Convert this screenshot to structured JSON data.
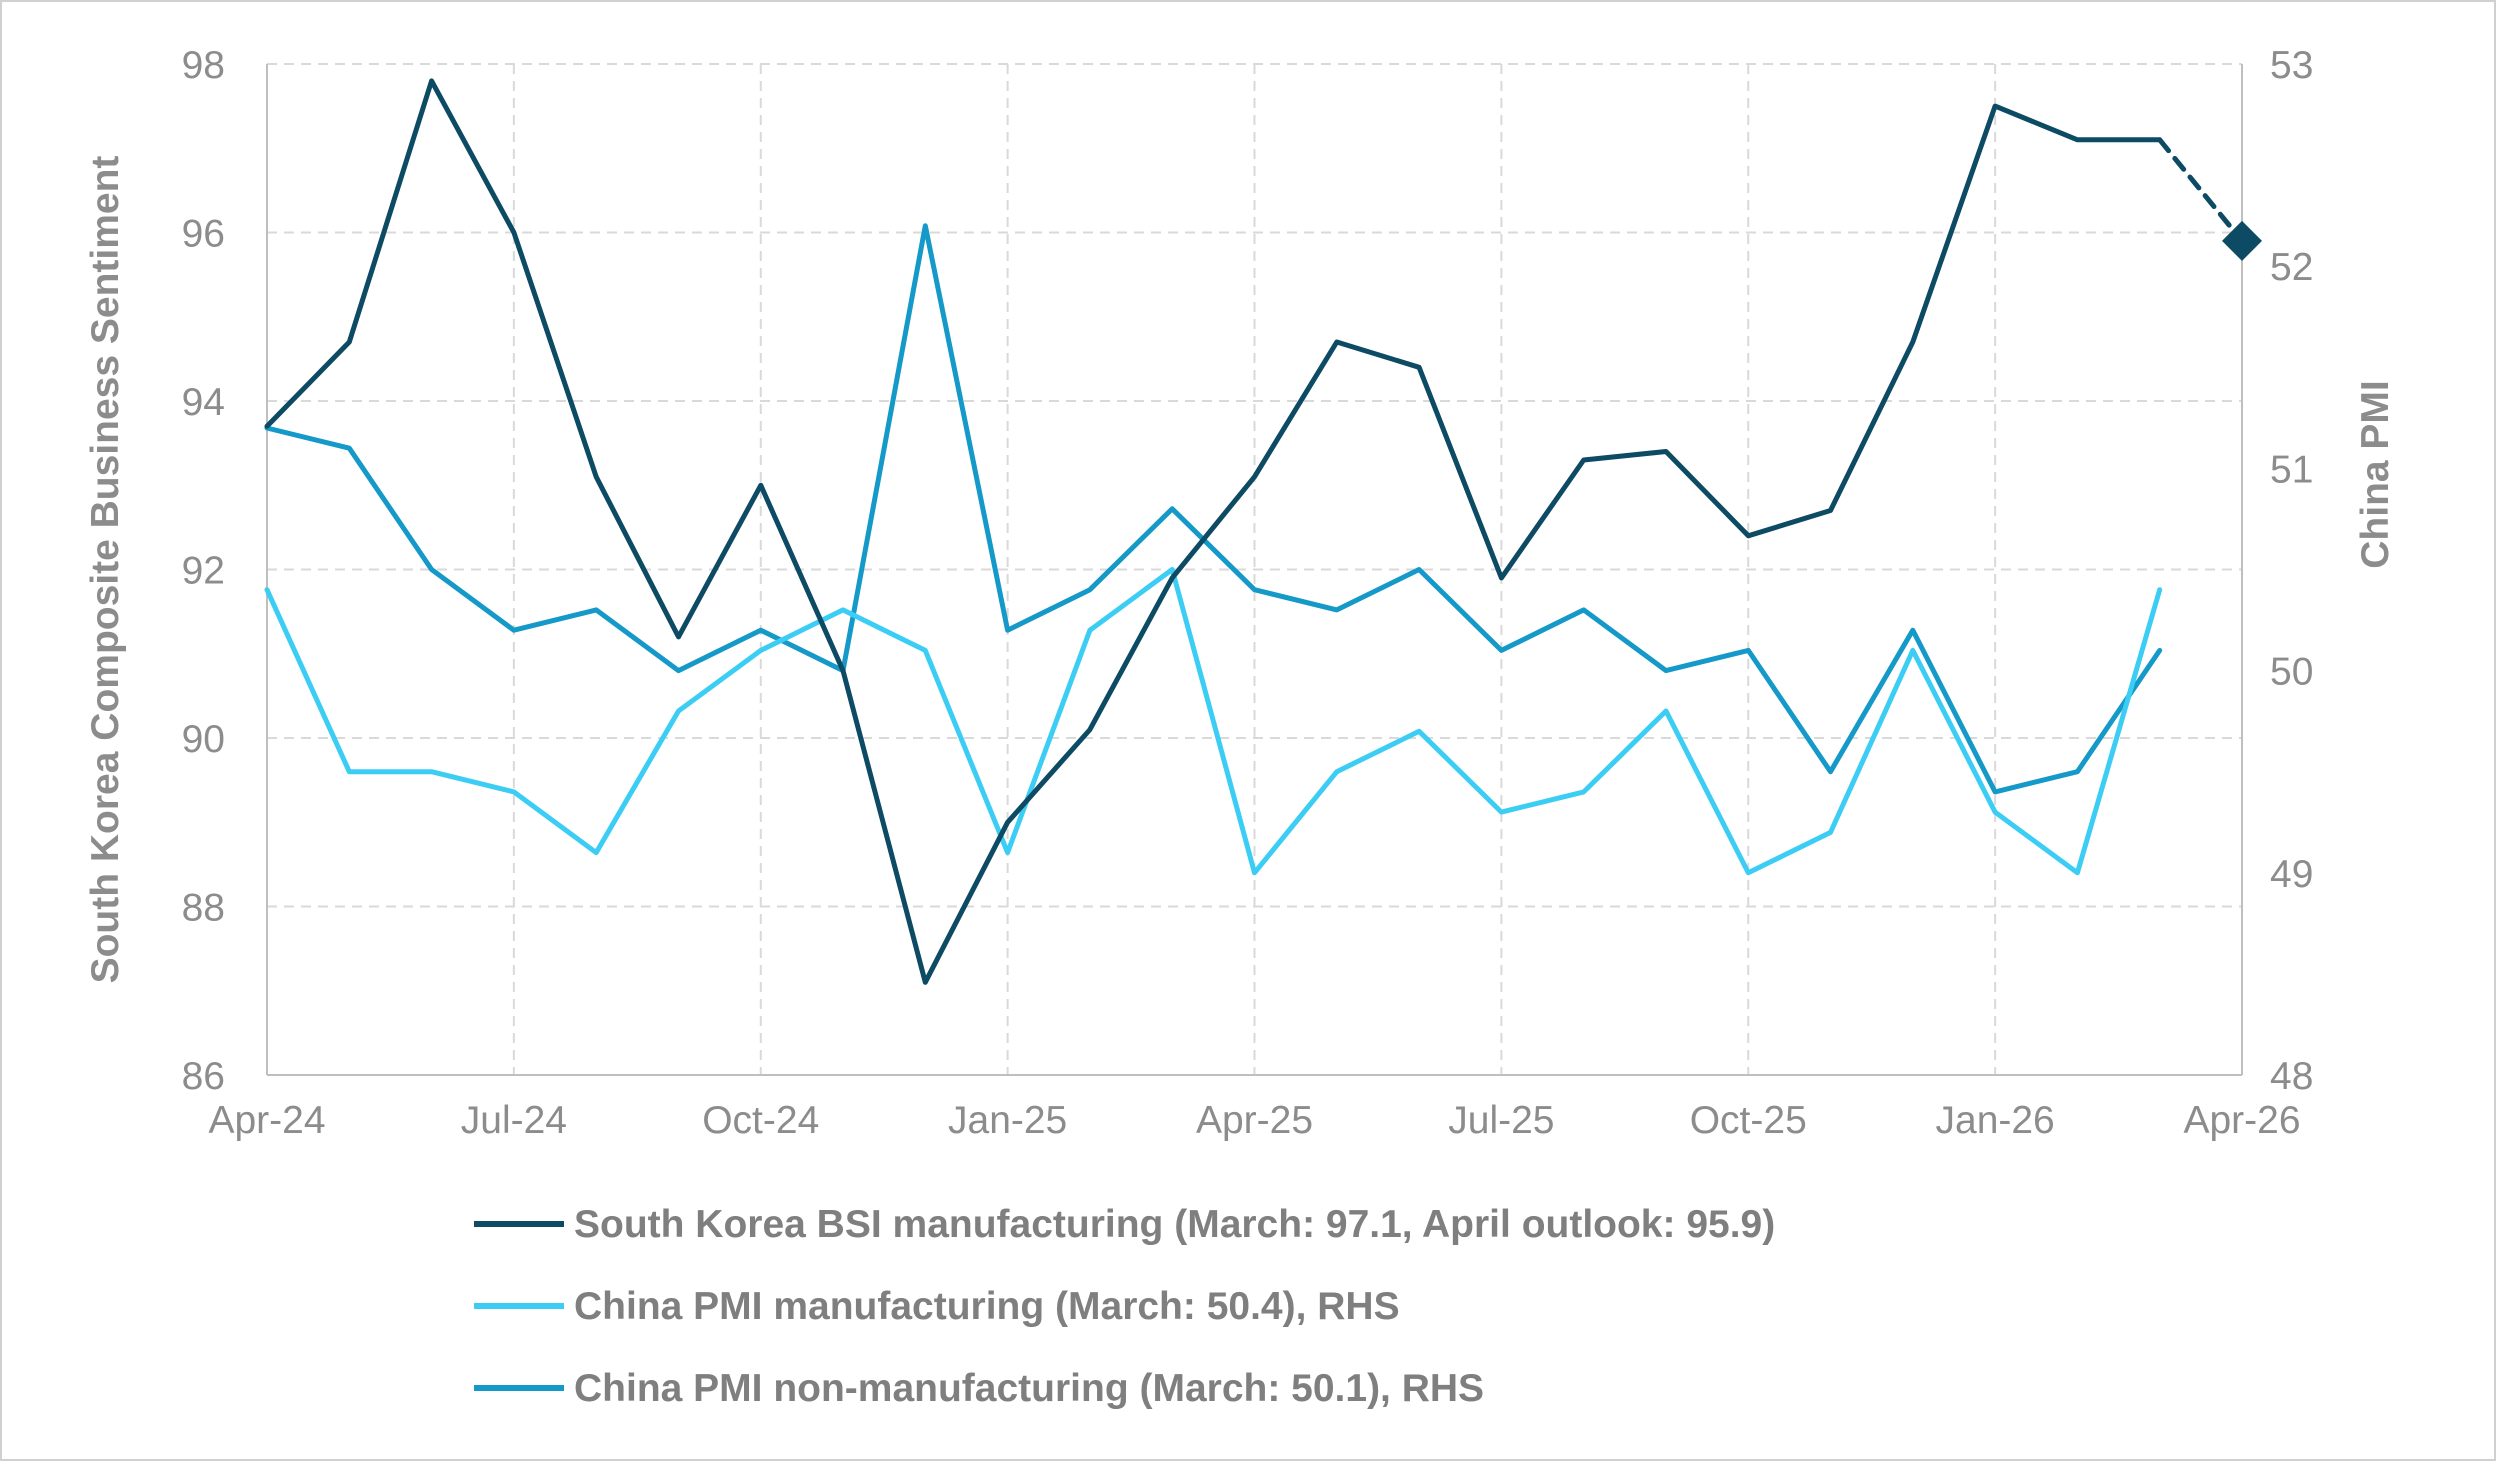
{
  "chart_data": {
    "type": "line",
    "x": [
      "Apr-24",
      "May-24",
      "Jun-24",
      "Jul-24",
      "Aug-24",
      "Sep-24",
      "Oct-24",
      "Nov-24",
      "Dec-24",
      "Jan-25",
      "Feb-25",
      "Mar-25",
      "Apr-25",
      "May-25",
      "Jun-25",
      "Jul-25",
      "Aug-25",
      "Sep-25",
      "Oct-25",
      "Nov-25",
      "Dec-25",
      "Jan-26",
      "Feb-26",
      "Mar-26",
      "Apr-26"
    ],
    "x_tick_labels": [
      "Apr-24",
      "Jul-24",
      "Oct-24",
      "Jan-25",
      "Apr-25",
      "Jul-25",
      "Oct-25",
      "Jan-26",
      "Apr-26"
    ],
    "ylabel": "South Korea Composite Business Sentiment",
    "y2label": "China PMI",
    "ylim": [
      86,
      98
    ],
    "y2lim": [
      48,
      53
    ],
    "y_ticks": [
      86,
      88,
      90,
      92,
      94,
      96,
      98
    ],
    "y2_ticks": [
      48,
      49,
      50,
      51,
      52,
      53
    ],
    "grid": true,
    "legend_position": "bottom",
    "series": [
      {
        "name": "South Korea BSI manufacturing (March: 97.1, April outlook: 95.9)",
        "axis": "left",
        "color": "#0d4a63",
        "values": [
          93.7,
          94.7,
          97.8,
          96.0,
          93.1,
          91.2,
          93.0,
          90.8,
          87.1,
          89.0,
          90.1,
          91.9,
          93.1,
          94.7,
          94.4,
          91.9,
          93.3,
          93.4,
          92.4,
          92.7,
          94.7,
          97.5,
          97.1,
          97.1,
          null
        ],
        "outlook": {
          "from": "Mar-26",
          "to": "Apr-26",
          "from_value": 97.1,
          "to_value": 95.9
        }
      },
      {
        "name": "China PMI manufacturing (March: 50.4), RHS",
        "axis": "right",
        "color": "#3ccdf5",
        "values": [
          50.4,
          49.5,
          49.5,
          49.4,
          49.1,
          49.8,
          50.1,
          50.3,
          50.1,
          49.1,
          50.2,
          50.5,
          49.0,
          49.5,
          49.7,
          49.3,
          49.4,
          49.8,
          49.0,
          49.2,
          50.1,
          49.3,
          49.0,
          50.4,
          null
        ]
      },
      {
        "name": "China PMI non-manufacturing (March: 50.1), RHS",
        "axis": "right",
        "color": "#1499c8",
        "values": [
          51.2,
          51.1,
          50.5,
          50.2,
          50.3,
          50.0,
          50.2,
          50.0,
          52.2,
          50.2,
          50.4,
          50.8,
          50.4,
          50.3,
          50.5,
          50.1,
          50.3,
          50.0,
          50.1,
          49.5,
          50.2,
          49.4,
          49.5,
          50.1,
          null
        ]
      }
    ]
  }
}
